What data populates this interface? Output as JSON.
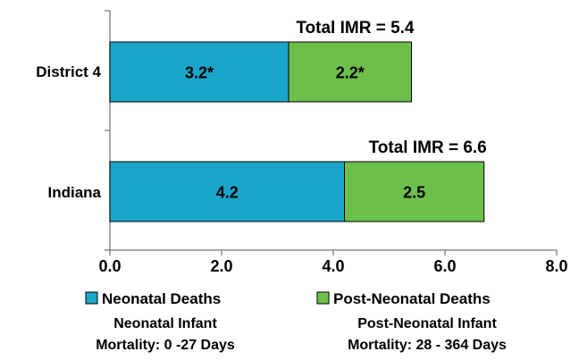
{
  "chart_data": {
    "type": "bar",
    "orientation": "horizontal",
    "stacked": true,
    "categories": [
      "District 4",
      "Indiana"
    ],
    "series": [
      {
        "name": "Neonatal Deaths",
        "values": [
          3.2,
          4.2
        ],
        "labels": [
          "3.2*",
          "4.2"
        ],
        "color": "#1aa6c9"
      },
      {
        "name": "Post-Neonatal Deaths",
        "values": [
          2.2,
          2.5
        ],
        "labels": [
          "2.2*",
          "2.5"
        ],
        "color": "#6dbf4b"
      }
    ],
    "totals": [
      "Total IMR = 5.4",
      "Total IMR = 6.6"
    ],
    "xlim": [
      0,
      8
    ],
    "xticks": [
      "0.0",
      "2.0",
      "4.0",
      "6.0",
      "8.0"
    ],
    "grid": false,
    "legend_position": "bottom",
    "legend_notes": [
      "Neonatal Infant\nMortality: 0 -27 Days",
      "Post-Neonatal Infant\nMortality: 28 - 364 Days"
    ]
  }
}
